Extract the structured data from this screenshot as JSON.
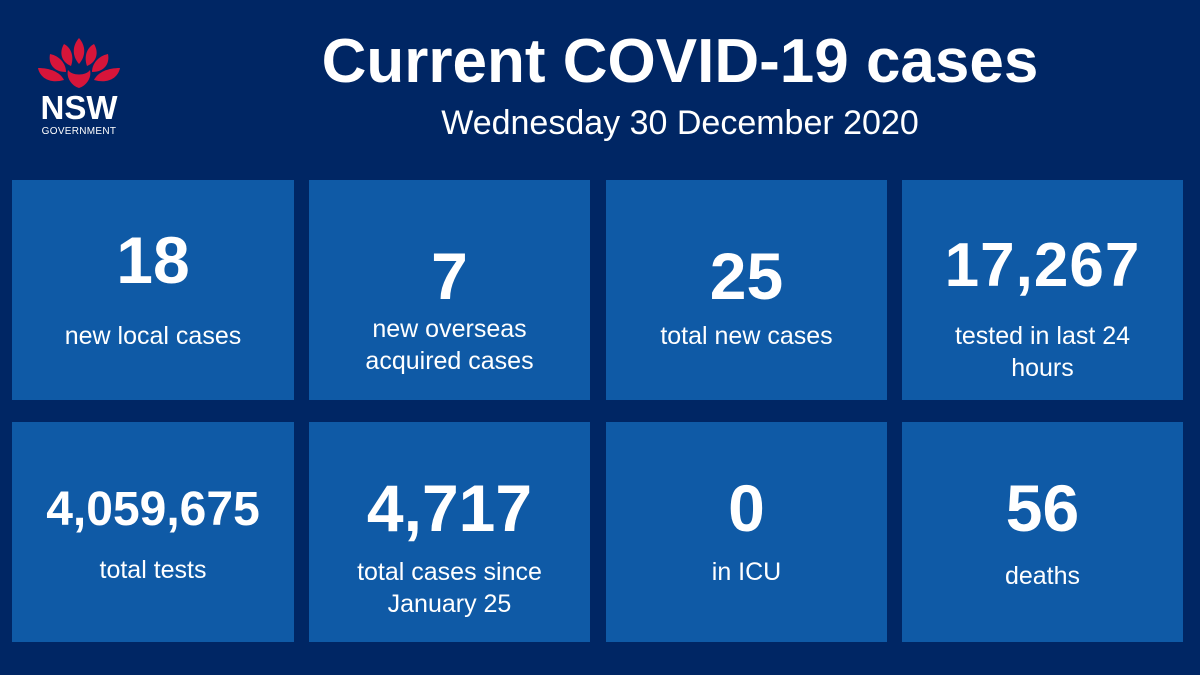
{
  "header": {
    "logo_text": "NSW",
    "logo_subtext": "GOVERNMENT",
    "title": "Current COVID-19 cases",
    "date": "Wednesday 30 December 2020"
  },
  "colors": {
    "background": "#002664",
    "tile": "#0f5aa6",
    "logo_red": "#d7153a",
    "text": "#ffffff"
  },
  "tiles": [
    {
      "value": "18",
      "label": "new local cases"
    },
    {
      "value": "7",
      "label": "new overseas acquired cases"
    },
    {
      "value": "25",
      "label": "total new cases"
    },
    {
      "value": "17,267",
      "label": "tested in last 24 hours"
    },
    {
      "value": "4,059,675",
      "label": "total tests"
    },
    {
      "value": "4,717",
      "label": "total cases since January 25"
    },
    {
      "value": "0",
      "label": "in ICU"
    },
    {
      "value": "56",
      "label": "deaths"
    }
  ]
}
